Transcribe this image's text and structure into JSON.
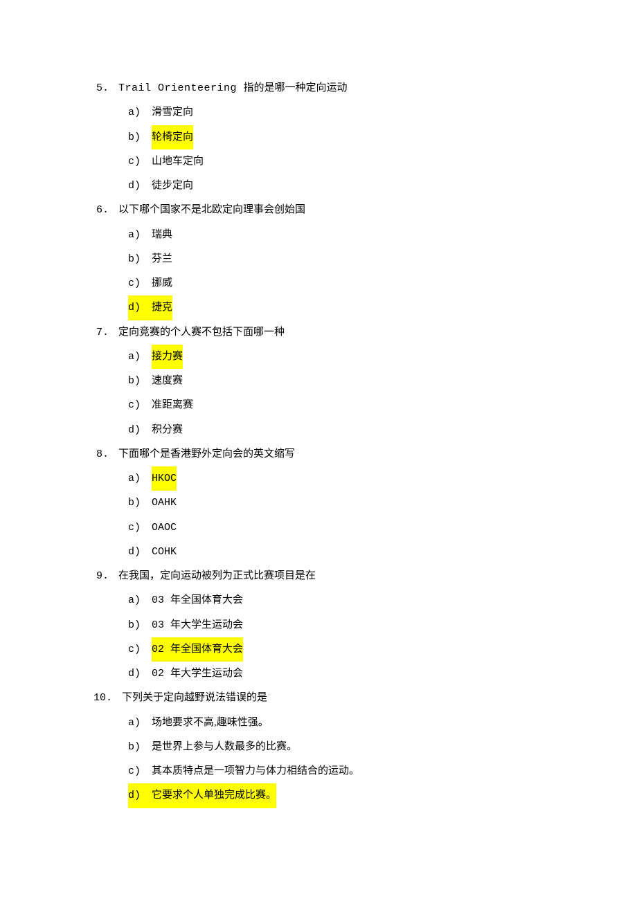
{
  "colors": {
    "background": "#ffffff",
    "text": "#000000",
    "highlight": "#ffff00"
  },
  "typography": {
    "base_fontsize": 15,
    "line_height": 2.35,
    "cn_font": "SimSun",
    "en_font": "Courier New"
  },
  "questions": [
    {
      "num": "5.",
      "text_en": "Trail Orienteering ",
      "text_cn": "指的是哪一种定向运动",
      "options": [
        {
          "letter": "a)",
          "text": "滑雪定向",
          "highlight": false,
          "highlight_letter": false
        },
        {
          "letter": "b)",
          "text": "轮椅定向",
          "highlight": true,
          "highlight_letter": false
        },
        {
          "letter": "c)",
          "text": "山地车定向",
          "highlight": false,
          "highlight_letter": false
        },
        {
          "letter": "d)",
          "text": "徒步定向",
          "highlight": false,
          "highlight_letter": false
        }
      ]
    },
    {
      "num": "6.",
      "text_cn": "以下哪个国家不是北欧定向理事会创始国",
      "options": [
        {
          "letter": "a)",
          "text": "瑞典",
          "highlight": false,
          "highlight_letter": false
        },
        {
          "letter": "b)",
          "text": "芬兰",
          "highlight": false,
          "highlight_letter": false
        },
        {
          "letter": "c)",
          "text": "挪威",
          "highlight": false,
          "highlight_letter": false
        },
        {
          "letter": "d)",
          "text": "捷克",
          "highlight": true,
          "highlight_letter": true
        }
      ]
    },
    {
      "num": "7.",
      "text_cn": "定向竞赛的个人赛不包括下面哪一种",
      "options": [
        {
          "letter": "a)",
          "text": "接力赛",
          "highlight": true,
          "highlight_letter": false
        },
        {
          "letter": "b)",
          "text": "速度赛",
          "highlight": false,
          "highlight_letter": false
        },
        {
          "letter": "c)",
          "text": "准距离赛",
          "highlight": false,
          "highlight_letter": false
        },
        {
          "letter": "d)",
          "text": "积分赛",
          "highlight": false,
          "highlight_letter": false
        }
      ]
    },
    {
      "num": "8.",
      "text_cn": "下面哪个是香港野外定向会的英文缩写",
      "options": [
        {
          "letter": "a)",
          "text": "HKOC",
          "highlight": true,
          "highlight_letter": false,
          "en": true
        },
        {
          "letter": "b)",
          "text": "OAHK",
          "highlight": false,
          "highlight_letter": false,
          "en": true
        },
        {
          "letter": "c)",
          "text": "OAOC",
          "highlight": false,
          "highlight_letter": false,
          "en": true
        },
        {
          "letter": "d)",
          "text": "COHK",
          "highlight": false,
          "highlight_letter": false,
          "en": true
        }
      ]
    },
    {
      "num": "9.",
      "text_cn": "在我国，定向运动被列为正式比赛项目是在",
      "options": [
        {
          "letter": "a)",
          "text_en": "03 ",
          "text": "年全国体育大会",
          "highlight": false,
          "highlight_letter": false
        },
        {
          "letter": "b)",
          "text_en": "03 ",
          "text": "年大学生运动会",
          "highlight": false,
          "highlight_letter": false
        },
        {
          "letter": "c)",
          "text_en": "02 ",
          "text": "年全国体育大会",
          "highlight": true,
          "highlight_letter": false,
          "highlight_all": true
        },
        {
          "letter": "d)",
          "text_en": "02 ",
          "text": "年大学生运动会",
          "highlight": false,
          "highlight_letter": false
        }
      ]
    },
    {
      "num": "10.",
      "text_cn": "下列关于定向越野说法错误的是",
      "options": [
        {
          "letter": "a)",
          "text": "场地要求不高,趣味性强。",
          "highlight": false,
          "highlight_letter": false
        },
        {
          "letter": "b)",
          "text": "是世界上参与人数最多的比赛。",
          "highlight": false,
          "highlight_letter": false
        },
        {
          "letter": "c)",
          "text": "其本质特点是一项智力与体力相结合的运动。",
          "highlight": false,
          "highlight_letter": false
        },
        {
          "letter": "d)",
          "text": "它要求个人单独完成比赛。",
          "highlight": true,
          "highlight_letter": true
        }
      ]
    }
  ]
}
